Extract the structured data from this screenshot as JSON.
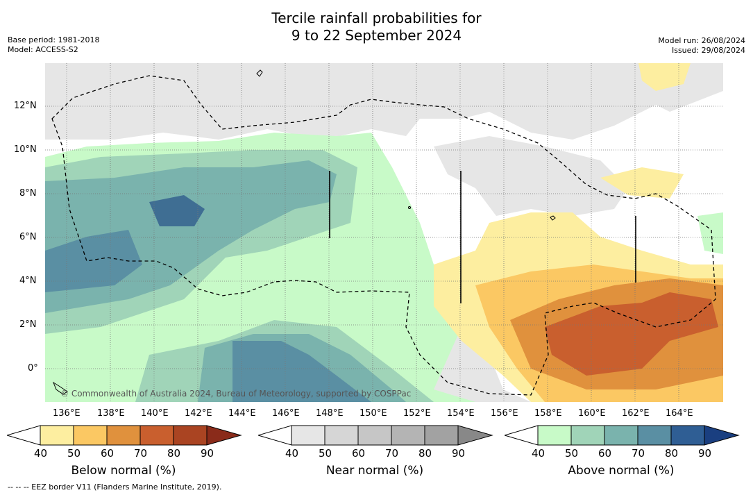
{
  "title": {
    "line1": "Tercile rainfall probabilities for",
    "line2": "9 to 22 September 2024"
  },
  "meta": {
    "base_period": "Base period: 1981-2018",
    "model": "Model: ACCESS-S2",
    "model_run": "Model run: 26/08/2024",
    "issued": "Issued: 29/08/2024"
  },
  "map": {
    "copyright": "© Commonwealth of Australia 2024, Bureau of Meteorology, supported by COSPPac",
    "lon_ticks": [
      "136°E",
      "138°E",
      "140°E",
      "142°E",
      "144°E",
      "146°E",
      "148°E",
      "150°E",
      "152°E",
      "154°E",
      "156°E",
      "158°E",
      "160°E",
      "162°E",
      "164°E"
    ],
    "lat_ticks": [
      "12°N",
      "10°N",
      "8°N",
      "6°N",
      "4°N",
      "2°N",
      "0°"
    ]
  },
  "colorbars": [
    {
      "title": "Below normal (%)",
      "labels": [
        "40",
        "50",
        "60",
        "70",
        "80",
        "90"
      ],
      "colors": [
        "#fdeea0",
        "#fbc863",
        "#e0913d",
        "#c95f2e",
        "#aa4422",
        "#8a2b1a"
      ]
    },
    {
      "title": "Near normal (%)",
      "labels": [
        "40",
        "50",
        "60",
        "70",
        "80",
        "90"
      ],
      "colors": [
        "#e6e6e6",
        "#d6d6d6",
        "#c6c6c6",
        "#b4b4b4",
        "#a2a2a2",
        "#888888"
      ]
    },
    {
      "title": "Above normal (%)",
      "labels": [
        "40",
        "50",
        "60",
        "70",
        "80",
        "90"
      ],
      "colors": [
        "#c8fac8",
        "#a0d4b8",
        "#7ab3ad",
        "#5a8fa3",
        "#2f5e94",
        "#1a3f80"
      ]
    }
  ],
  "footer": "--  --  -- EEZ border V11 (Flanders Marine Institute, 2019)."
}
